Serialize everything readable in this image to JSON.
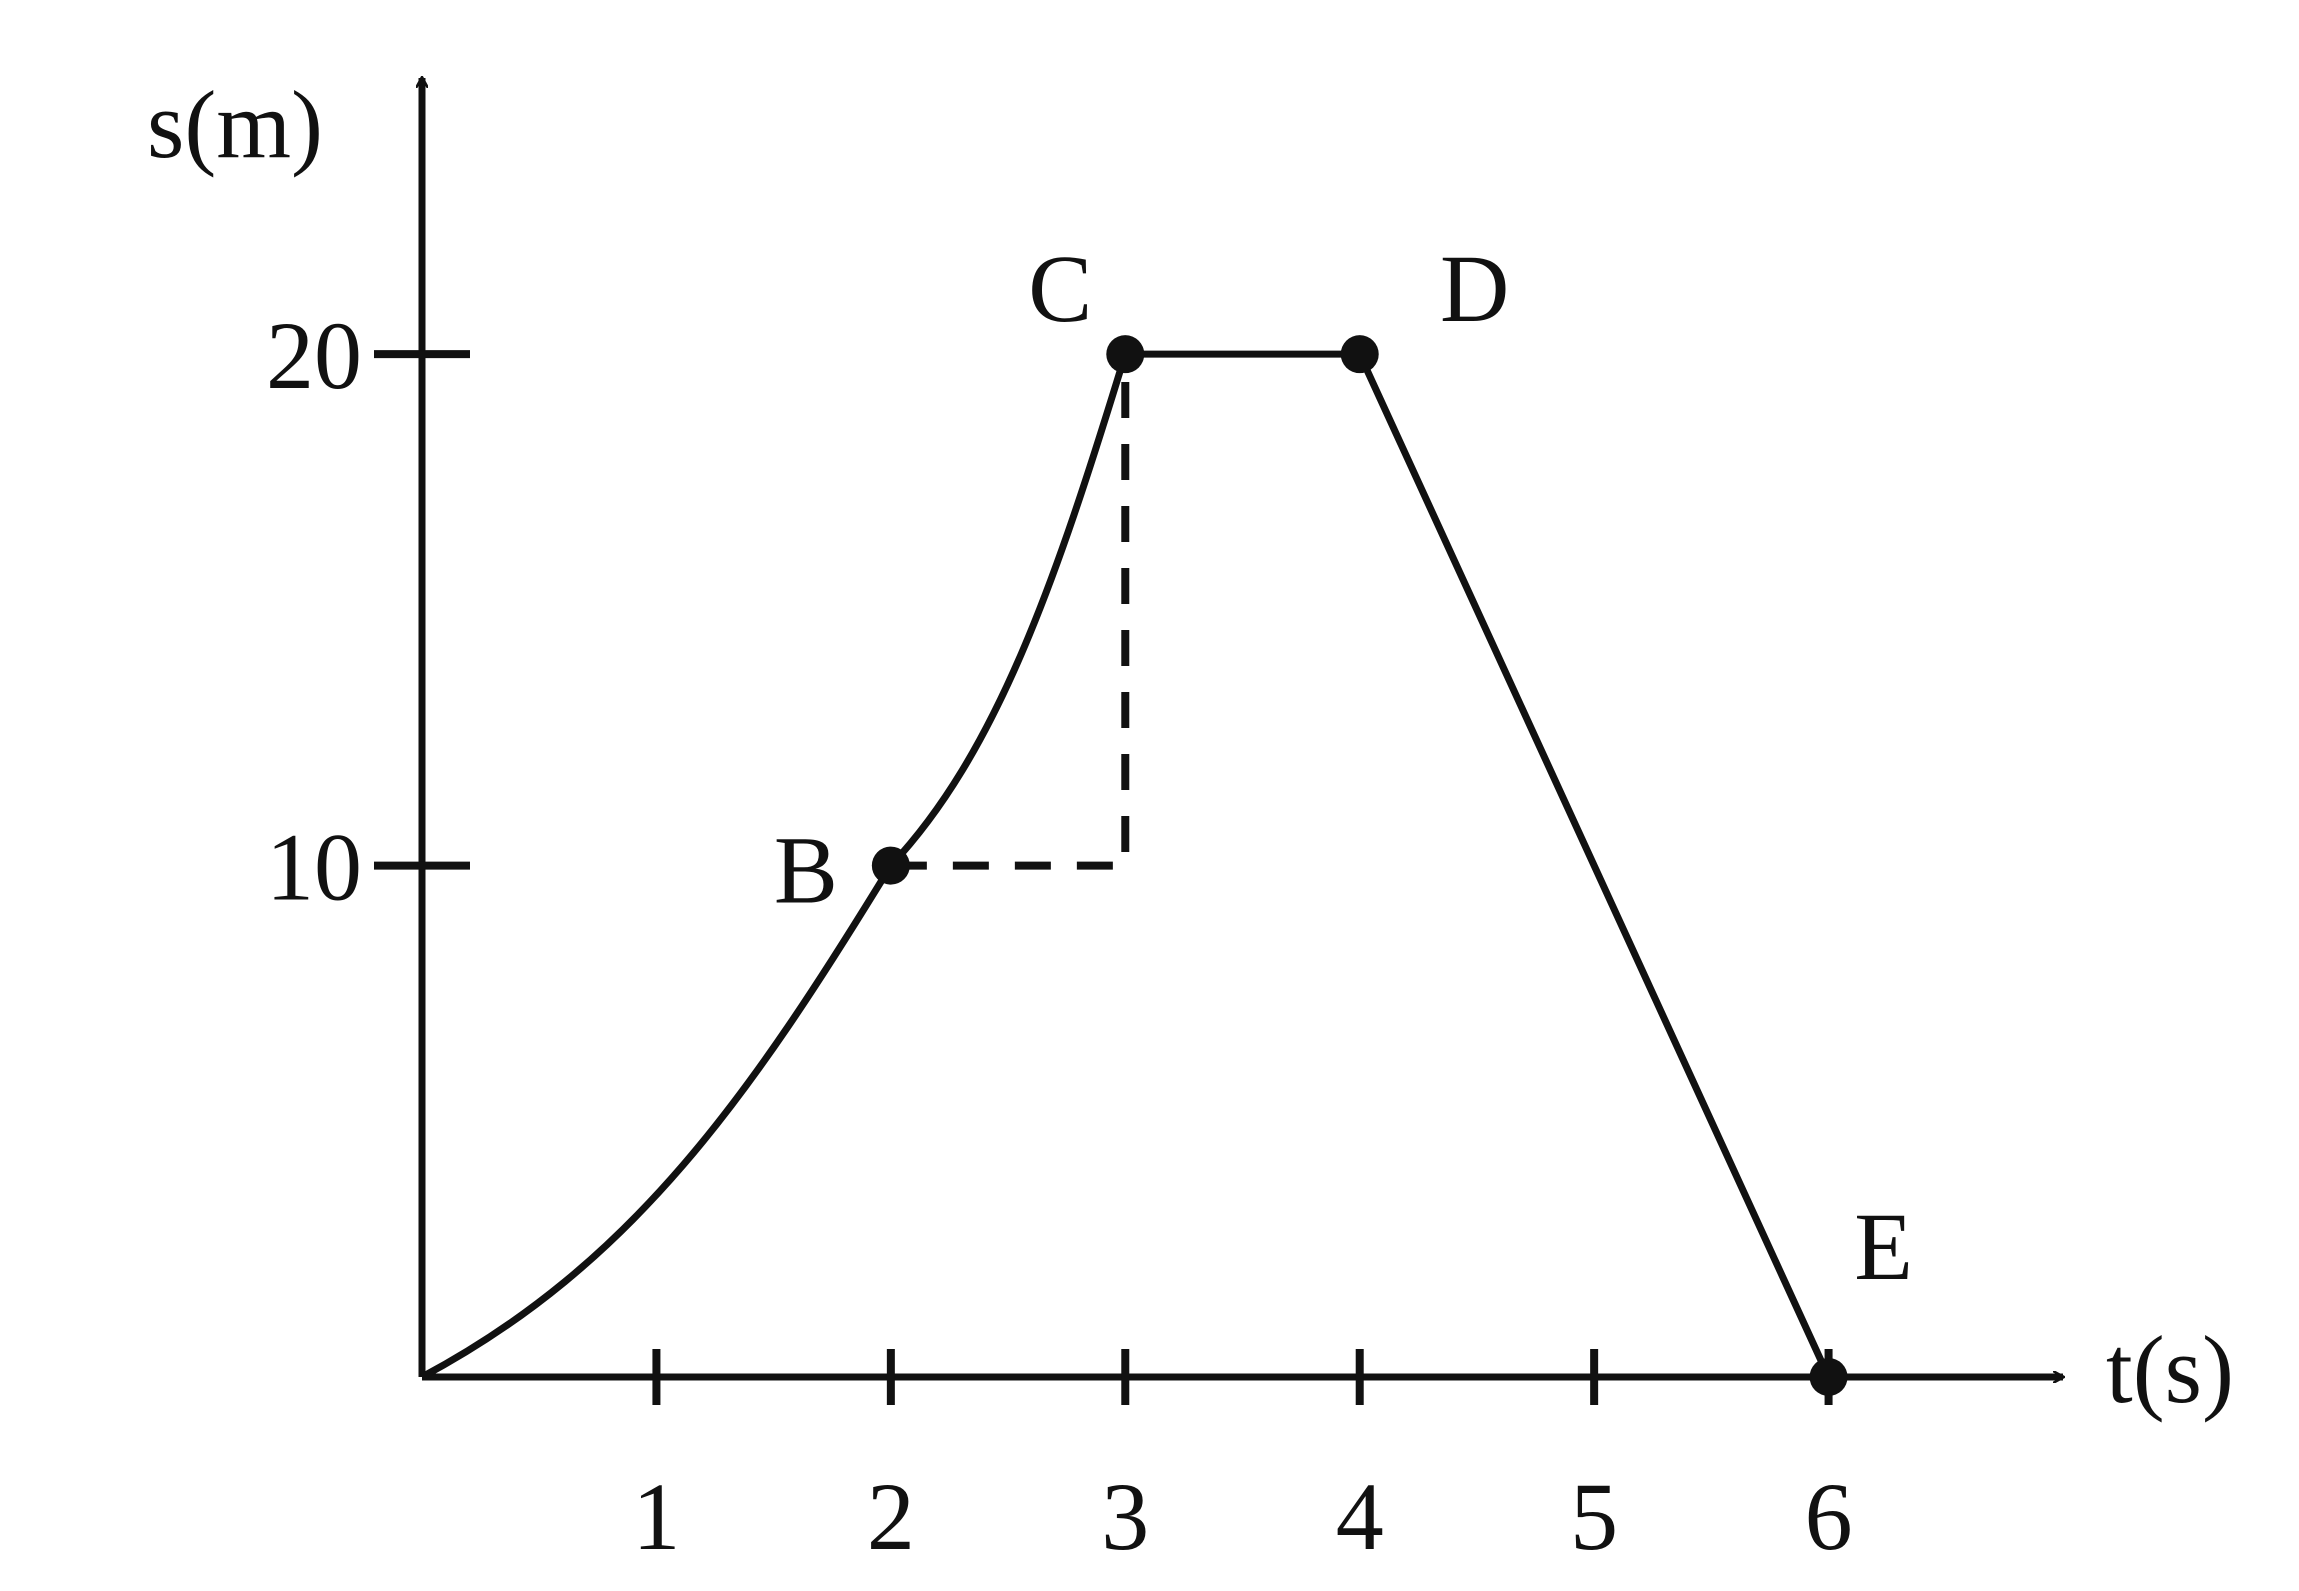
{
  "chart_data": {
    "type": "line",
    "x_label": "t(s)",
    "y_label": "s(m)",
    "x": [
      0,
      2,
      3,
      4,
      6
    ],
    "values": [
      0,
      10,
      20,
      20,
      0
    ],
    "point_labels": [
      null,
      "B",
      "C",
      "D",
      "E"
    ],
    "color": "#111111",
    "xlim": [
      0,
      7
    ],
    "ylim": [
      0,
      25.4
    ],
    "xticks": [
      1,
      2,
      3,
      4,
      5,
      6
    ],
    "yticks": [
      10,
      20
    ]
  }
}
